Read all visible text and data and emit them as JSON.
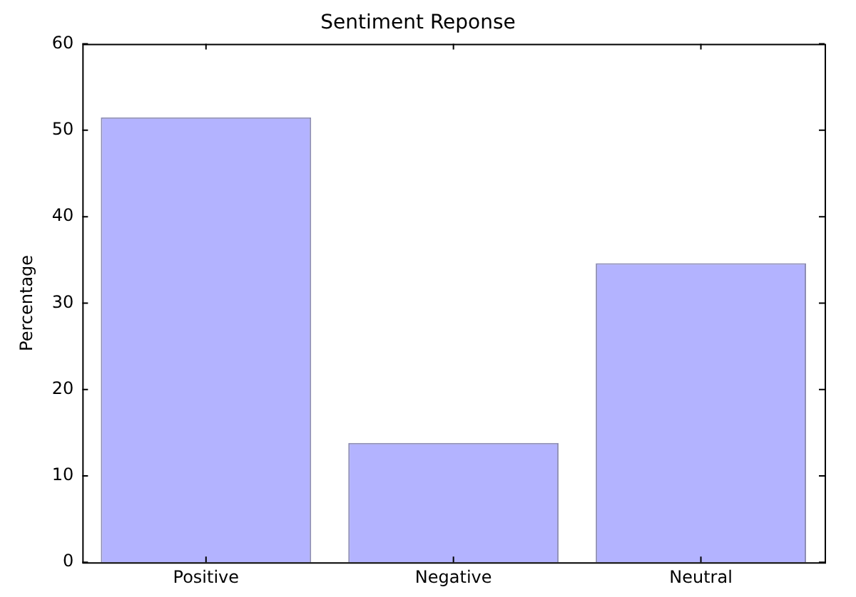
{
  "chart_data": {
    "type": "bar",
    "title": "Sentiment Reponse",
    "ylabel": "Percentage",
    "categories": [
      "Positive",
      "Negative",
      "Neutral"
    ],
    "values": [
      51.5,
      13.8,
      34.6
    ],
    "color": "#b3b3ff",
    "ylim": [
      0,
      60
    ],
    "yticks": [
      0,
      10,
      20,
      30,
      40,
      50,
      60
    ],
    "grid": false,
    "legend": false
  }
}
